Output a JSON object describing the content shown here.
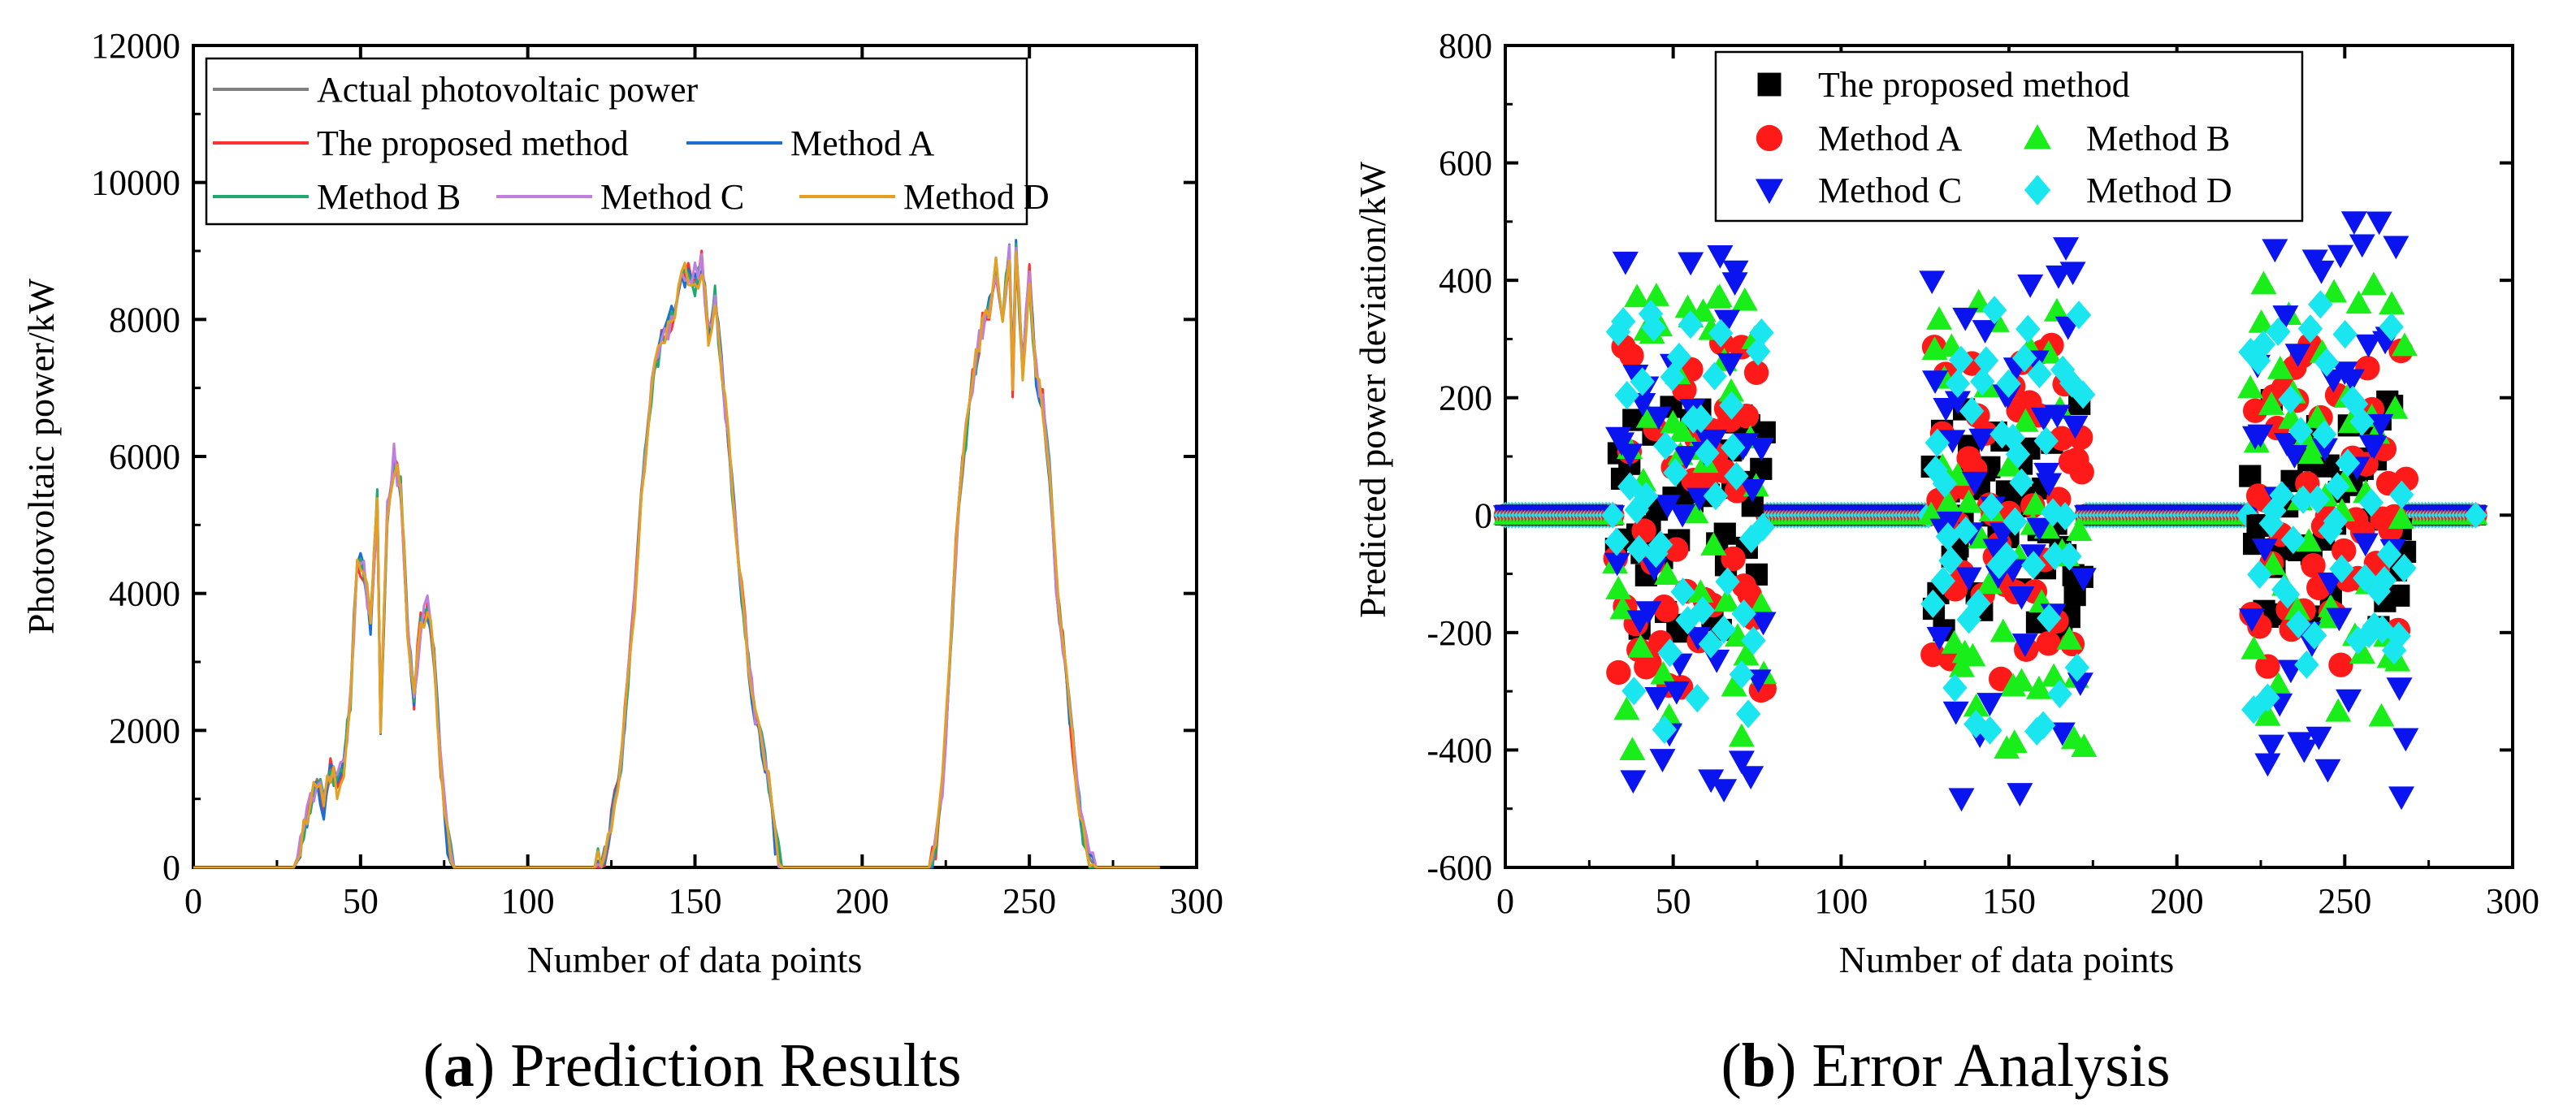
{
  "chart_data": [
    {
      "type": "line",
      "caption_label": "a",
      "caption_text": "Prediction Results",
      "xlabel": "Number of data points",
      "ylabel": "Photovoltaic power/kW",
      "xlim": [
        0,
        300
      ],
      "ylim": [
        0,
        12000
      ],
      "xticks": [
        0,
        50,
        100,
        150,
        200,
        250,
        300
      ],
      "yticks": [
        0,
        2000,
        4000,
        6000,
        8000,
        10000,
        12000
      ],
      "grid": false,
      "legend_position": "top-left",
      "series": [
        {
          "name": "Actual photovoltaic power",
          "color": "#808080"
        },
        {
          "name": "The proposed method",
          "color": "#ff3333"
        },
        {
          "name": "Method A",
          "color": "#1a6fd6"
        },
        {
          "name": "Method B",
          "color": "#20a870"
        },
        {
          "name": "Method C",
          "color": "#c07ee0"
        },
        {
          "name": "Method D",
          "color": "#e6a020"
        }
      ],
      "base_profile": {
        "x": [
          0,
          30,
          33,
          35,
          37,
          39,
          41,
          43,
          45,
          47,
          49,
          51,
          53,
          55,
          56,
          58,
          60,
          62,
          64,
          66,
          68,
          70,
          72,
          74,
          76,
          78,
          80,
          120,
          124,
          126,
          128,
          130,
          132,
          134,
          136,
          138,
          140,
          142,
          144,
          146,
          148,
          150,
          152,
          154,
          156,
          158,
          160,
          162,
          164,
          166,
          168,
          170,
          172,
          174,
          176,
          180,
          220,
          222,
          224,
          226,
          228,
          230,
          232,
          234,
          236,
          238,
          240,
          242,
          244,
          245,
          246,
          248,
          250,
          252,
          254,
          256,
          258,
          260,
          262,
          264,
          266,
          268,
          270,
          272,
          290
        ],
        "y": [
          0,
          0,
          500,
          1000,
          1300,
          900,
          1400,
          1200,
          1500,
          2500,
          4500,
          4300,
          3600,
          5400,
          2100,
          5200,
          5900,
          5600,
          3500,
          2500,
          3600,
          3800,
          3000,
          1500,
          400,
          0,
          0,
          0,
          300,
          1000,
          1500,
          2800,
          3900,
          5400,
          6600,
          7200,
          7700,
          7900,
          8200,
          8600,
          8700,
          8500,
          8800,
          7800,
          8300,
          7300,
          6200,
          5100,
          4000,
          3000,
          2200,
          1800,
          1200,
          400,
          0,
          0,
          0,
          300,
          1200,
          2800,
          4600,
          5800,
          6800,
          7400,
          7900,
          8200,
          8700,
          8000,
          8900,
          7000,
          9000,
          7300,
          8600,
          7200,
          6800,
          5800,
          4200,
          3300,
          2300,
          1300,
          500,
          100,
          0,
          0,
          0
        ]
      }
    },
    {
      "type": "scatter",
      "caption_label": "b",
      "caption_text": "Error Analysis",
      "xlabel": "Number of data points",
      "ylabel": "Predicted power deviation/kW",
      "xlim": [
        0,
        300
      ],
      "ylim": [
        -600,
        800
      ],
      "xticks": [
        0,
        50,
        100,
        150,
        200,
        250,
        300
      ],
      "yticks": [
        -600,
        -400,
        -200,
        0,
        200,
        400,
        600,
        800
      ],
      "grid": false,
      "legend_position": "top-center",
      "series": [
        {
          "name": "The proposed method",
          "marker": "square",
          "color": "#000000",
          "amp": 200
        },
        {
          "name": "Method A",
          "marker": "circle",
          "color": "#ff1a1a",
          "amp": 300
        },
        {
          "name": "Method B",
          "marker": "triangle-up",
          "color": "#1aee1a",
          "amp": 400
        },
        {
          "name": "Method C",
          "marker": "triangle-down",
          "color": "#0a14ee",
          "amp": 500
        },
        {
          "name": "Method D",
          "marker": "diamond",
          "color": "#1ae6f0",
          "amp": 370
        }
      ],
      "active_ranges": [
        [
          33,
          77
        ],
        [
          127,
          172
        ],
        [
          222,
          268
        ]
      ],
      "zero_range": [
        0,
        289
      ]
    }
  ]
}
